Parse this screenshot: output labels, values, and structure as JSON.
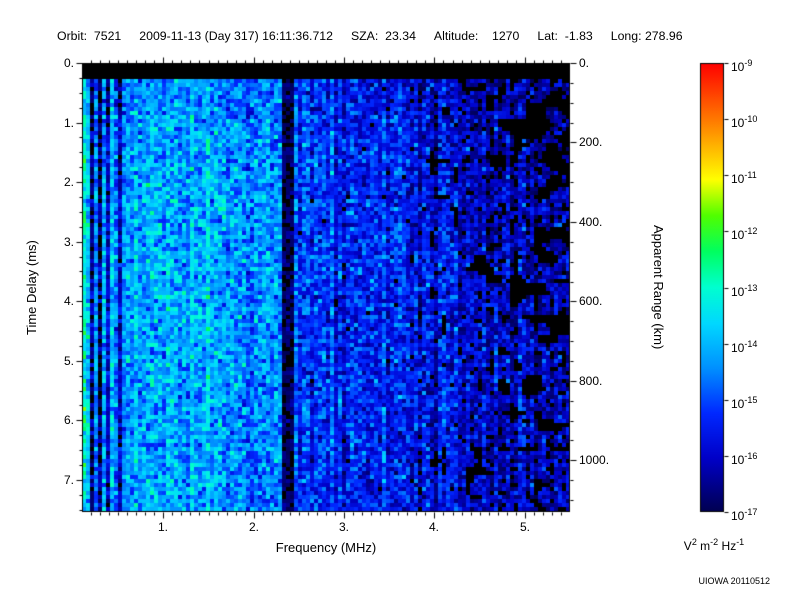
{
  "header": {
    "items": [
      "Orbit:  7521",
      "2009-11-13 (Day 317) 16:11:36.712",
      "SZA:  23.34",
      "Altitude:    1270",
      "Lat:  -1.83",
      "Long: 278.96"
    ]
  },
  "chart_data": {
    "type": "heatmap",
    "description": "Radar sounder ionogram spectrogram: received spectral density vs frequency and time delay",
    "xlabel": "Frequency (MHz)",
    "ylabel": "Time Delay (ms)",
    "ylabel_right": "Apparent Range (km)",
    "xlim_mhz": [
      0.1,
      5.5
    ],
    "ylim_ms": [
      0,
      7.54
    ],
    "ylim_km": [
      0,
      1130
    ],
    "x_ticks": [
      {
        "v": 1,
        "label": "1."
      },
      {
        "v": 2,
        "label": "2."
      },
      {
        "v": 3,
        "label": "3."
      },
      {
        "v": 4,
        "label": "4."
      },
      {
        "v": 5,
        "label": "5."
      }
    ],
    "y_ticks_ms": [
      "0.",
      "1.",
      "2.",
      "3.",
      "4.",
      "5.",
      "6.",
      "7."
    ],
    "y_ticks_km": [
      {
        "v": 0,
        "label": "0."
      },
      {
        "v": 200,
        "label": "200."
      },
      {
        "v": 400,
        "label": "400."
      },
      {
        "v": 600,
        "label": "600."
      },
      {
        "v": 800,
        "label": "800."
      },
      {
        "v": 1000,
        "label": "1000."
      }
    ],
    "colorbar": {
      "scale": "log10",
      "min": 1e-17,
      "max": 1e-09,
      "ticks": [
        {
          "mant": "10",
          "exp": "-9"
        },
        {
          "mant": "10",
          "exp": "-10"
        },
        {
          "mant": "10",
          "exp": "-11"
        },
        {
          "mant": "10",
          "exp": "-12"
        },
        {
          "mant": "10",
          "exp": "-13"
        },
        {
          "mant": "10",
          "exp": "-14"
        },
        {
          "mant": "10",
          "exp": "-15"
        },
        {
          "mant": "10",
          "exp": "-16"
        },
        {
          "mant": "10",
          "exp": "-17"
        }
      ],
      "unit_parts": [
        {
          "text": "V"
        },
        {
          "text": "2",
          "sup": true
        },
        {
          "text": " m"
        },
        {
          "text": "-2",
          "sup": true
        },
        {
          "text": " Hz"
        },
        {
          "text": "-1",
          "sup": true
        }
      ],
      "gradient_stops": [
        {
          "pos": 0.0,
          "color": "#000050"
        },
        {
          "pos": 0.12,
          "color": "#0000c8"
        },
        {
          "pos": 0.22,
          "color": "#0028ff"
        },
        {
          "pos": 0.32,
          "color": "#0090ff"
        },
        {
          "pos": 0.42,
          "color": "#00d8ff"
        },
        {
          "pos": 0.5,
          "color": "#00ffd0"
        },
        {
          "pos": 0.58,
          "color": "#00ff60"
        },
        {
          "pos": 0.66,
          "color": "#50ff00"
        },
        {
          "pos": 0.74,
          "color": "#ffff00"
        },
        {
          "pos": 0.85,
          "color": "#ff9000"
        },
        {
          "pos": 1.0,
          "color": "#ff0000"
        }
      ]
    },
    "intensity_grid_log10": [
      [
        -14.5,
        -14.2,
        -14.3,
        -14.4,
        -14.5,
        -15.4,
        -15.5,
        -15.6,
        -15.9,
        -16.2,
        -16.4,
        -16.6
      ],
      [
        -14.2,
        -14.0,
        -14.1,
        -14.2,
        -14.4,
        -15.2,
        -15.3,
        -15.4,
        -15.8,
        -16.1,
        -16.3,
        -16.5
      ],
      [
        -14.1,
        -13.9,
        -14.0,
        -14.1,
        -14.3,
        -15.2,
        -15.3,
        -15.4,
        -15.7,
        -16.0,
        -16.2,
        -16.4
      ],
      [
        -14.1,
        -13.9,
        -14.0,
        -14.2,
        -14.3,
        -15.1,
        -15.2,
        -15.4,
        -15.7,
        -15.9,
        -16.1,
        -16.3
      ],
      [
        -14.0,
        -13.9,
        -14.0,
        -14.2,
        -14.4,
        -15.2,
        -15.3,
        -15.4,
        -15.6,
        -15.9,
        -16.1,
        -16.3
      ],
      [
        -14.1,
        -14.0,
        -14.1,
        -14.2,
        -14.4,
        -15.2,
        -15.3,
        -15.4,
        -15.7,
        -15.9,
        -16.0,
        -16.2
      ],
      [
        -14.1,
        -14.0,
        -14.1,
        -14.3,
        -14.4,
        -15.2,
        -15.3,
        -15.5,
        -15.7,
        -15.9,
        -16.1,
        -16.3
      ],
      [
        -14.2,
        -14.0,
        -14.1,
        -14.3,
        -14.5,
        -15.3,
        -15.4,
        -15.5,
        -15.7,
        -16.0,
        -16.1,
        -16.3
      ]
    ],
    "features": {
      "top_black_band_ms": [
        0,
        0.27
      ],
      "bright_band_mhz": [
        0.1,
        2.33
      ],
      "gap_band_mhz": [
        2.33,
        2.46
      ],
      "medium_band_mhz": [
        2.46,
        3.9
      ],
      "faint_band_mhz": [
        3.9,
        5.5
      ],
      "dark_stripes_mhz": [
        0.2,
        0.28,
        0.4,
        0.52
      ],
      "mean_log10_power": {
        "bright": -14.1,
        "gap": -16.9,
        "medium": -15.3,
        "faint": -16.1
      },
      "noise_sigma_log10": 0.6,
      "seed": 7521
    }
  },
  "watermark": "UIOWA 20110512"
}
